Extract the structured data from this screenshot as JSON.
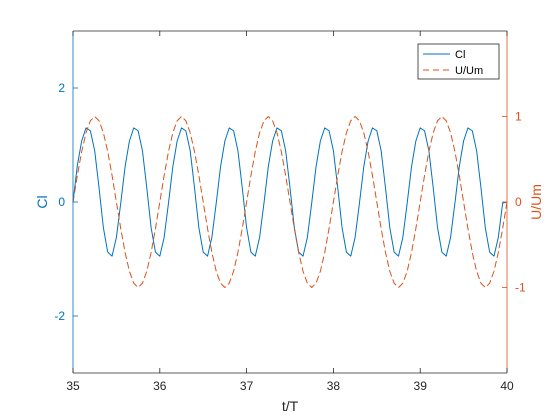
{
  "chart_data": {
    "type": "line",
    "xlabel": "t/T",
    "ylabel_left": "Cl",
    "ylabel_right": "U/Um",
    "xlim": [
      35,
      40
    ],
    "ylim_left": [
      -3,
      3
    ],
    "ylim_right": [
      -2,
      2
    ],
    "xticks": [
      35,
      36,
      37,
      38,
      39,
      40
    ],
    "yticks_left": [
      -2,
      0,
      2
    ],
    "yticks_right": [
      -1,
      0,
      1
    ],
    "grid": false,
    "legend_position": "top-right",
    "colors": {
      "left_axis": "#0072BD",
      "right_axis": "#D95319",
      "box": "#262626"
    },
    "series": [
      {
        "name": "Cl",
        "axis": "left",
        "style": "solid",
        "color": "#0072BD",
        "x": [
          35.0,
          35.05,
          35.1,
          35.15,
          35.2,
          35.25,
          35.3,
          35.35,
          35.4,
          35.45,
          35.5,
          35.55,
          35.6,
          35.65,
          35.7,
          35.75,
          35.8,
          35.85,
          35.9,
          35.95,
          36.0,
          36.05,
          36.1,
          36.15,
          36.2,
          36.25,
          36.3,
          36.35,
          36.4,
          36.45,
          36.5,
          36.55,
          36.6,
          36.65,
          36.7,
          36.75,
          36.8,
          36.85,
          36.9,
          36.95,
          37.0,
          37.05,
          37.1,
          37.15,
          37.2,
          37.25,
          37.3,
          37.35,
          37.4,
          37.45,
          37.5,
          37.55,
          37.6,
          37.65,
          37.7,
          37.75,
          37.8,
          37.85,
          37.9,
          37.95,
          38.0,
          38.05,
          38.1,
          38.15,
          38.2,
          38.25,
          38.3,
          38.35,
          38.4,
          38.45,
          38.5,
          38.55,
          38.6,
          38.65,
          38.7,
          38.75,
          38.8,
          38.85,
          38.9,
          38.95,
          39.0,
          39.05,
          39.1,
          39.15,
          39.2,
          39.25,
          39.3,
          39.35,
          39.4,
          39.45,
          39.5,
          39.55,
          39.6,
          39.65,
          39.7,
          39.75,
          39.8,
          39.85,
          39.9,
          39.95,
          40.0
        ],
        "y": [
          0.0,
          0.64,
          1.07,
          1.3,
          1.25,
          0.9,
          0.25,
          -0.45,
          -0.88,
          -0.95,
          -0.62,
          -0.02,
          0.62,
          1.07,
          1.3,
          1.25,
          0.9,
          0.25,
          -0.45,
          -0.88,
          -0.95,
          -0.62,
          -0.02,
          0.62,
          1.07,
          1.3,
          1.25,
          0.9,
          0.25,
          -0.45,
          -0.88,
          -0.95,
          -0.62,
          -0.02,
          0.62,
          1.07,
          1.3,
          1.25,
          0.9,
          0.25,
          -0.45,
          -0.88,
          -0.95,
          -0.62,
          -0.02,
          0.62,
          1.07,
          1.3,
          1.25,
          0.9,
          0.25,
          -0.45,
          -0.88,
          -0.95,
          -0.62,
          -0.02,
          0.62,
          1.07,
          1.3,
          1.25,
          0.9,
          0.25,
          -0.45,
          -0.88,
          -0.95,
          -0.62,
          -0.02,
          0.62,
          1.07,
          1.3,
          1.25,
          0.9,
          0.25,
          -0.45,
          -0.88,
          -0.95,
          -0.62,
          -0.02,
          0.62,
          1.07,
          1.3,
          1.25,
          0.9,
          0.25,
          -0.45,
          -0.88,
          -0.95,
          -0.62,
          -0.02,
          0.62,
          1.07,
          1.3,
          1.25,
          0.9,
          0.25,
          -0.45,
          -0.88,
          -0.95,
          -0.62,
          -0.02,
          0.0
        ]
      },
      {
        "name": "U/Um",
        "axis": "right",
        "style": "dashed",
        "color": "#D95319",
        "x": [
          35.0,
          35.05,
          35.1,
          35.15,
          35.2,
          35.25,
          35.3,
          35.35,
          35.4,
          35.45,
          35.5,
          35.55,
          35.6,
          35.65,
          35.7,
          35.75,
          35.8,
          35.85,
          35.9,
          35.95,
          36.0,
          36.05,
          36.1,
          36.15,
          36.2,
          36.25,
          36.3,
          36.35,
          36.4,
          36.45,
          36.5,
          36.55,
          36.6,
          36.65,
          36.7,
          36.75,
          36.8,
          36.85,
          36.9,
          36.95,
          37.0,
          37.05,
          37.1,
          37.15,
          37.2,
          37.25,
          37.3,
          37.35,
          37.4,
          37.45,
          37.5,
          37.55,
          37.6,
          37.65,
          37.7,
          37.75,
          37.8,
          37.85,
          37.9,
          37.95,
          38.0,
          38.05,
          38.1,
          38.15,
          38.2,
          38.25,
          38.3,
          38.35,
          38.4,
          38.45,
          38.5,
          38.55,
          38.6,
          38.65,
          38.7,
          38.75,
          38.8,
          38.85,
          38.9,
          38.95,
          39.0,
          39.05,
          39.1,
          39.15,
          39.2,
          39.25,
          39.3,
          39.35,
          39.4,
          39.45,
          39.5,
          39.55,
          39.6,
          39.65,
          39.7,
          39.75,
          39.8,
          39.85,
          39.9,
          39.95,
          40.0
        ],
        "y": [
          0.0,
          0.31,
          0.59,
          0.81,
          0.95,
          1.0,
          0.95,
          0.81,
          0.59,
          0.31,
          0.0,
          -0.31,
          -0.59,
          -0.81,
          -0.95,
          -1.0,
          -0.95,
          -0.81,
          -0.59,
          -0.31,
          0.0,
          0.31,
          0.59,
          0.81,
          0.95,
          1.0,
          0.95,
          0.81,
          0.59,
          0.31,
          0.0,
          -0.31,
          -0.59,
          -0.81,
          -0.95,
          -1.0,
          -0.95,
          -0.81,
          -0.59,
          -0.31,
          0.0,
          0.31,
          0.59,
          0.81,
          0.95,
          1.0,
          0.95,
          0.81,
          0.59,
          0.31,
          0.0,
          -0.31,
          -0.59,
          -0.81,
          -0.95,
          -1.0,
          -0.95,
          -0.81,
          -0.59,
          -0.31,
          0.0,
          0.31,
          0.59,
          0.81,
          0.95,
          1.0,
          0.95,
          0.81,
          0.59,
          0.31,
          0.0,
          -0.31,
          -0.59,
          -0.81,
          -0.95,
          -1.0,
          -0.95,
          -0.81,
          -0.59,
          -0.31,
          0.0,
          0.31,
          0.59,
          0.81,
          0.95,
          1.0,
          0.95,
          0.81,
          0.59,
          0.31,
          0.0,
          -0.31,
          -0.59,
          -0.81,
          -0.95,
          -1.0,
          -0.95,
          -0.81,
          -0.59,
          -0.31,
          0.0
        ]
      }
    ]
  }
}
